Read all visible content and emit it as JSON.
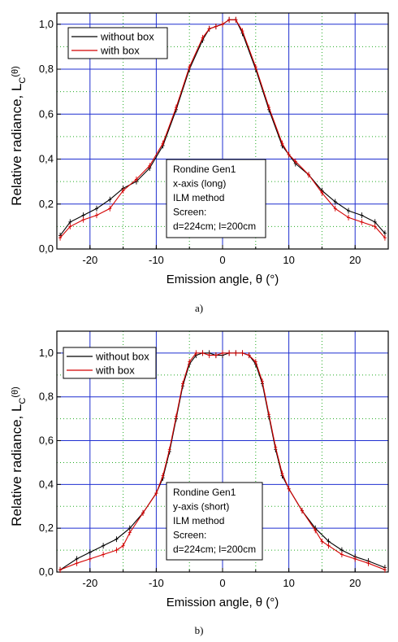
{
  "chart_data": [
    {
      "type": "line",
      "caption": "a)",
      "xlabel": "Emission angle, θ (°)",
      "ylabel_main": "Relative radiance, L",
      "ylabel_sub": "C",
      "ylabel_paren": "(θ)",
      "xlim": [
        -25,
        25
      ],
      "ylim": [
        0,
        1.05
      ],
      "xticks": [
        {
          "v": -20,
          "label": "-20"
        },
        {
          "v": -10,
          "label": "-10"
        },
        {
          "v": 0,
          "label": "0"
        },
        {
          "v": 10,
          "label": "10"
        },
        {
          "v": 20,
          "label": "20"
        }
      ],
      "yticks": [
        {
          "v": 0,
          "label": "0,0"
        },
        {
          "v": 0.2,
          "label": "0,2"
        },
        {
          "v": 0.4,
          "label": "0,4"
        },
        {
          "v": 0.6,
          "label": "0,6"
        },
        {
          "v": 0.8,
          "label": "0,8"
        },
        {
          "v": 1.0,
          "label": "1,0"
        }
      ],
      "grid": {
        "major": true,
        "minor": true
      },
      "legend_position": "top-left",
      "annotation": [
        "Rondine Gen1",
        "x-axis (long)",
        "ILM method",
        "Screen:",
        "d=224cm; l=200cm"
      ],
      "series": [
        {
          "name": "without box",
          "color": "#000000",
          "x": [
            -24.5,
            -23,
            -21,
            -19,
            -17,
            -15,
            -13,
            -11,
            -9,
            -7,
            -5,
            -3,
            -2,
            -1,
            0,
            1,
            2,
            3,
            5,
            7,
            9,
            10,
            11,
            13,
            15,
            17,
            19,
            21,
            23,
            24.5
          ],
          "y": [
            0.06,
            0.12,
            0.15,
            0.18,
            0.22,
            0.27,
            0.3,
            0.36,
            0.46,
            0.62,
            0.8,
            0.93,
            0.98,
            0.99,
            1.0,
            1.02,
            1.02,
            0.96,
            0.8,
            0.62,
            0.46,
            0.42,
            0.38,
            0.33,
            0.26,
            0.21,
            0.17,
            0.15,
            0.12,
            0.07
          ]
        },
        {
          "name": "with box",
          "color": "#d40000",
          "x": [
            -24.5,
            -23,
            -21,
            -19,
            -17,
            -15,
            -13,
            -11,
            -9,
            -7,
            -5,
            -3,
            -2,
            -1,
            0,
            1,
            2,
            3,
            5,
            7,
            9,
            10,
            11,
            13,
            15,
            17,
            19,
            21,
            23,
            24.5
          ],
          "y": [
            0.05,
            0.1,
            0.13,
            0.15,
            0.18,
            0.26,
            0.31,
            0.37,
            0.47,
            0.63,
            0.81,
            0.94,
            0.98,
            0.99,
            1.0,
            1.02,
            1.02,
            0.97,
            0.81,
            0.63,
            0.47,
            0.42,
            0.39,
            0.33,
            0.25,
            0.18,
            0.14,
            0.12,
            0.1,
            0.05
          ]
        }
      ]
    },
    {
      "type": "line",
      "caption": "b)",
      "xlabel": "Emission angle, θ (°)",
      "ylabel_main": "Relative radiance, L",
      "ylabel_sub": "C",
      "ylabel_paren": "(θ)",
      "xlim": [
        -25,
        25
      ],
      "ylim": [
        0,
        1.1
      ],
      "xticks": [
        {
          "v": -20,
          "label": "-20"
        },
        {
          "v": -10,
          "label": "-10"
        },
        {
          "v": 0,
          "label": "0"
        },
        {
          "v": 10,
          "label": "10"
        },
        {
          "v": 20,
          "label": "20"
        }
      ],
      "yticks": [
        {
          "v": 0,
          "label": "0,0"
        },
        {
          "v": 0.2,
          "label": "0,2"
        },
        {
          "v": 0.4,
          "label": "0,4"
        },
        {
          "v": 0.6,
          "label": "0,6"
        },
        {
          "v": 0.8,
          "label": "0,8"
        },
        {
          "v": 1.0,
          "label": "1,0"
        }
      ],
      "grid": {
        "major": true,
        "minor": true
      },
      "legend_position": "top-left",
      "annotation": [
        "Rondine Gen1",
        "y-axis (short)",
        "ILM method",
        "Screen:",
        "d=224cm; l=200cm"
      ],
      "series": [
        {
          "name": "without box",
          "color": "#000000",
          "x": [
            -24.5,
            -22,
            -20,
            -18,
            -16,
            -14,
            -12,
            -10,
            -9,
            -8,
            -7,
            -6,
            -5,
            -4,
            -3,
            -2,
            -1,
            0,
            1,
            2,
            3,
            4,
            5,
            6,
            7,
            8,
            9,
            10,
            12,
            14,
            16,
            18,
            20,
            22,
            24.5
          ],
          "y": [
            0.01,
            0.06,
            0.09,
            0.12,
            0.15,
            0.2,
            0.27,
            0.36,
            0.43,
            0.55,
            0.7,
            0.85,
            0.95,
            0.99,
            1.0,
            1.0,
            0.99,
            0.99,
            1.0,
            1.0,
            1.0,
            0.99,
            0.95,
            0.86,
            0.71,
            0.56,
            0.44,
            0.38,
            0.28,
            0.2,
            0.14,
            0.1,
            0.07,
            0.05,
            0.02
          ]
        },
        {
          "name": "with box",
          "color": "#d40000",
          "x": [
            -24.5,
            -22,
            -20,
            -18,
            -16,
            -15,
            -14,
            -12,
            -10,
            -9,
            -8,
            -7,
            -6,
            -5,
            -4,
            -3,
            -2,
            -1,
            0,
            1,
            2,
            3,
            4,
            5,
            6,
            7,
            8,
            9,
            10,
            12,
            14,
            15,
            16,
            18,
            20,
            22,
            24.5
          ],
          "y": [
            0.01,
            0.04,
            0.06,
            0.08,
            0.1,
            0.12,
            0.18,
            0.27,
            0.36,
            0.44,
            0.56,
            0.71,
            0.86,
            0.96,
            1.0,
            1.0,
            0.99,
            0.99,
            1.0,
            1.0,
            1.0,
            1.0,
            0.99,
            0.96,
            0.87,
            0.72,
            0.57,
            0.45,
            0.38,
            0.28,
            0.19,
            0.14,
            0.12,
            0.08,
            0.06,
            0.04,
            0.01
          ]
        }
      ]
    }
  ]
}
